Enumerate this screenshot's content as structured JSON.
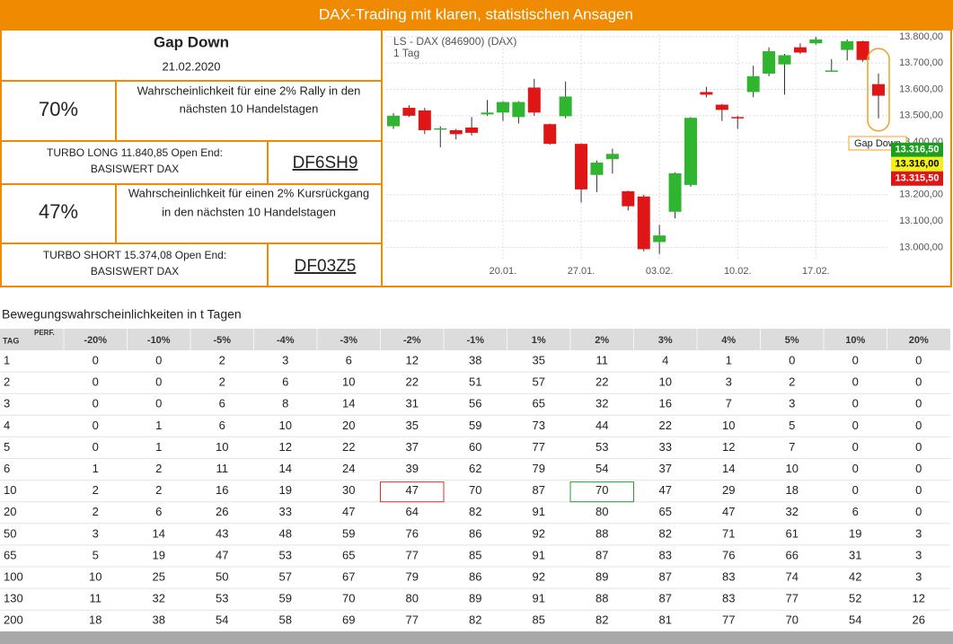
{
  "header": {
    "title": "DAX-Trading mit klaren, statistischen Ansagen"
  },
  "signal": {
    "title": "Gap Down",
    "date": "21.02.2020",
    "long": {
      "probability": "70%",
      "text": [
        "Wahrscheinlichkeit für eine 2% Rally in den",
        "nächsten 10 Handelstagen"
      ],
      "product": [
        "TURBO LONG 11.840,85 Open End:",
        "BASISWERT DAX"
      ],
      "code": "DF6SH9"
    },
    "short": {
      "probability": "47%",
      "text": [
        "Wahrscheinlichkeit für einen 2% Kursrückgang",
        "in den nächsten 10 Handelstagen"
      ],
      "product": [
        "TURBO SHORT 15.374,08 Open End:",
        "BASISWERT DAX"
      ],
      "code": "DF03Z5"
    }
  },
  "chart_data": {
    "type": "candlestick",
    "title": "LS - DAX (846900) (DAX)",
    "subtitle": "1 Tag",
    "categories": [
      null,
      null,
      null,
      null,
      null,
      null,
      null,
      "20.01.",
      null,
      null,
      null,
      null,
      "27.01.",
      null,
      null,
      null,
      null,
      "03.02.",
      null,
      null,
      null,
      null,
      "10.02.",
      null,
      null,
      null,
      null,
      "17.02.",
      null,
      null,
      null,
      null
    ],
    "open": [
      13460,
      13530,
      13520,
      13450,
      13445,
      13455,
      13505,
      13512,
      13495,
      13607,
      13468,
      13498,
      13393,
      13275,
      13335,
      13213,
      13193,
      13020,
      13135,
      13237,
      13590,
      13542,
      13495,
      13590,
      13660,
      13695,
      13760,
      13775,
      13670,
      13750,
      13783,
      13620
    ],
    "high": [
      13510,
      13540,
      13530,
      13460,
      13450,
      13495,
      13560,
      13555,
      13555,
      13640,
      13470,
      13630,
      13395,
      13330,
      13375,
      13215,
      13200,
      13085,
      13285,
      13495,
      13610,
      13545,
      13500,
      13690,
      13760,
      13735,
      13775,
      13800,
      13715,
      13790,
      13785,
      13660
    ],
    "low": [
      13450,
      13495,
      13430,
      13380,
      13410,
      13425,
      13500,
      13480,
      13470,
      13500,
      13390,
      13490,
      13170,
      13210,
      13280,
      13140,
      12985,
      12975,
      13110,
      13230,
      13570,
      13480,
      13450,
      13570,
      13650,
      13580,
      13735,
      13770,
      13670,
      13710,
      13705,
      13490
    ],
    "close": [
      13500,
      13500,
      13445,
      13452,
      13430,
      13435,
      13512,
      13552,
      13552,
      13512,
      13393,
      13573,
      13220,
      13322,
      13355,
      13156,
      12993,
      13045,
      13281,
      13492,
      13580,
      13522,
      13490,
      13650,
      13745,
      13730,
      13740,
      13790,
      13672,
      13783,
      13712,
      13576
    ],
    "up_color": "#2fb52f",
    "down_color": "#e01515",
    "ylim": [
      12950,
      13810
    ],
    "yticks": [
      {
        "value": 13000,
        "label": "13.000,00"
      },
      {
        "value": 13100,
        "label": "13.100,00"
      },
      {
        "value": 13200,
        "label": "13.200,00"
      },
      {
        "value": 13400,
        "label": "13.400,00"
      },
      {
        "value": 13500,
        "label": "13.500,00"
      },
      {
        "value": 13600,
        "label": "13.600,00"
      },
      {
        "value": 13700,
        "label": "13.700,00"
      },
      {
        "value": 13800,
        "label": "13.800,00"
      }
    ],
    "grid": true,
    "annotation": "Gap Down",
    "price_tags": [
      {
        "value": 13316.5,
        "label": "13.316,50",
        "color": "#1e9e1e"
      },
      {
        "value": 13316,
        "label": "13.316,00",
        "color": "#f2f21a"
      },
      {
        "value": 13315.5,
        "label": "13.315,50",
        "color": "#e01515"
      }
    ]
  },
  "table": {
    "title": "Bewegungswahrscheinlichkeiten in t Tagen",
    "corner": [
      "TAG",
      "PERF."
    ],
    "columns": [
      "-20%",
      "-10%",
      "-5%",
      "-4%",
      "-3%",
      "-2%",
      "-1%",
      "1%",
      "2%",
      "3%",
      "4%",
      "5%",
      "10%",
      "20%"
    ],
    "rows": [
      {
        "t": 1,
        "values": [
          0,
          0,
          2,
          3,
          6,
          12,
          38,
          35,
          11,
          4,
          1,
          0,
          0,
          0
        ]
      },
      {
        "t": 2,
        "values": [
          0,
          0,
          2,
          6,
          10,
          22,
          51,
          57,
          22,
          10,
          3,
          2,
          0,
          0
        ]
      },
      {
        "t": 3,
        "values": [
          0,
          0,
          6,
          8,
          14,
          31,
          56,
          65,
          32,
          16,
          7,
          3,
          0,
          0
        ]
      },
      {
        "t": 4,
        "values": [
          0,
          1,
          6,
          10,
          20,
          35,
          59,
          73,
          44,
          22,
          10,
          5,
          0,
          0
        ]
      },
      {
        "t": 5,
        "values": [
          0,
          1,
          10,
          12,
          22,
          37,
          60,
          77,
          53,
          33,
          12,
          7,
          0,
          0
        ]
      },
      {
        "t": 6,
        "values": [
          1,
          2,
          11,
          14,
          24,
          39,
          62,
          79,
          54,
          37,
          14,
          10,
          0,
          0
        ]
      },
      {
        "t": 10,
        "values": [
          2,
          2,
          16,
          19,
          30,
          47,
          70,
          87,
          70,
          47,
          29,
          18,
          0,
          0
        ]
      },
      {
        "t": 20,
        "values": [
          2,
          6,
          26,
          33,
          47,
          64,
          82,
          91,
          80,
          65,
          47,
          32,
          6,
          0
        ]
      },
      {
        "t": 50,
        "values": [
          3,
          14,
          43,
          48,
          59,
          76,
          86,
          92,
          88,
          82,
          71,
          61,
          19,
          3
        ]
      },
      {
        "t": 65,
        "values": [
          5,
          19,
          47,
          53,
          65,
          77,
          85,
          91,
          87,
          83,
          76,
          66,
          31,
          3
        ]
      },
      {
        "t": 100,
        "values": [
          10,
          25,
          50,
          57,
          67,
          79,
          86,
          92,
          89,
          87,
          83,
          74,
          42,
          3
        ]
      },
      {
        "t": 130,
        "values": [
          11,
          32,
          53,
          59,
          70,
          80,
          89,
          91,
          88,
          87,
          83,
          77,
          52,
          12
        ]
      },
      {
        "t": 200,
        "values": [
          18,
          38,
          54,
          58,
          69,
          77,
          82,
          85,
          82,
          81,
          77,
          70,
          54,
          26
        ]
      }
    ]
  }
}
